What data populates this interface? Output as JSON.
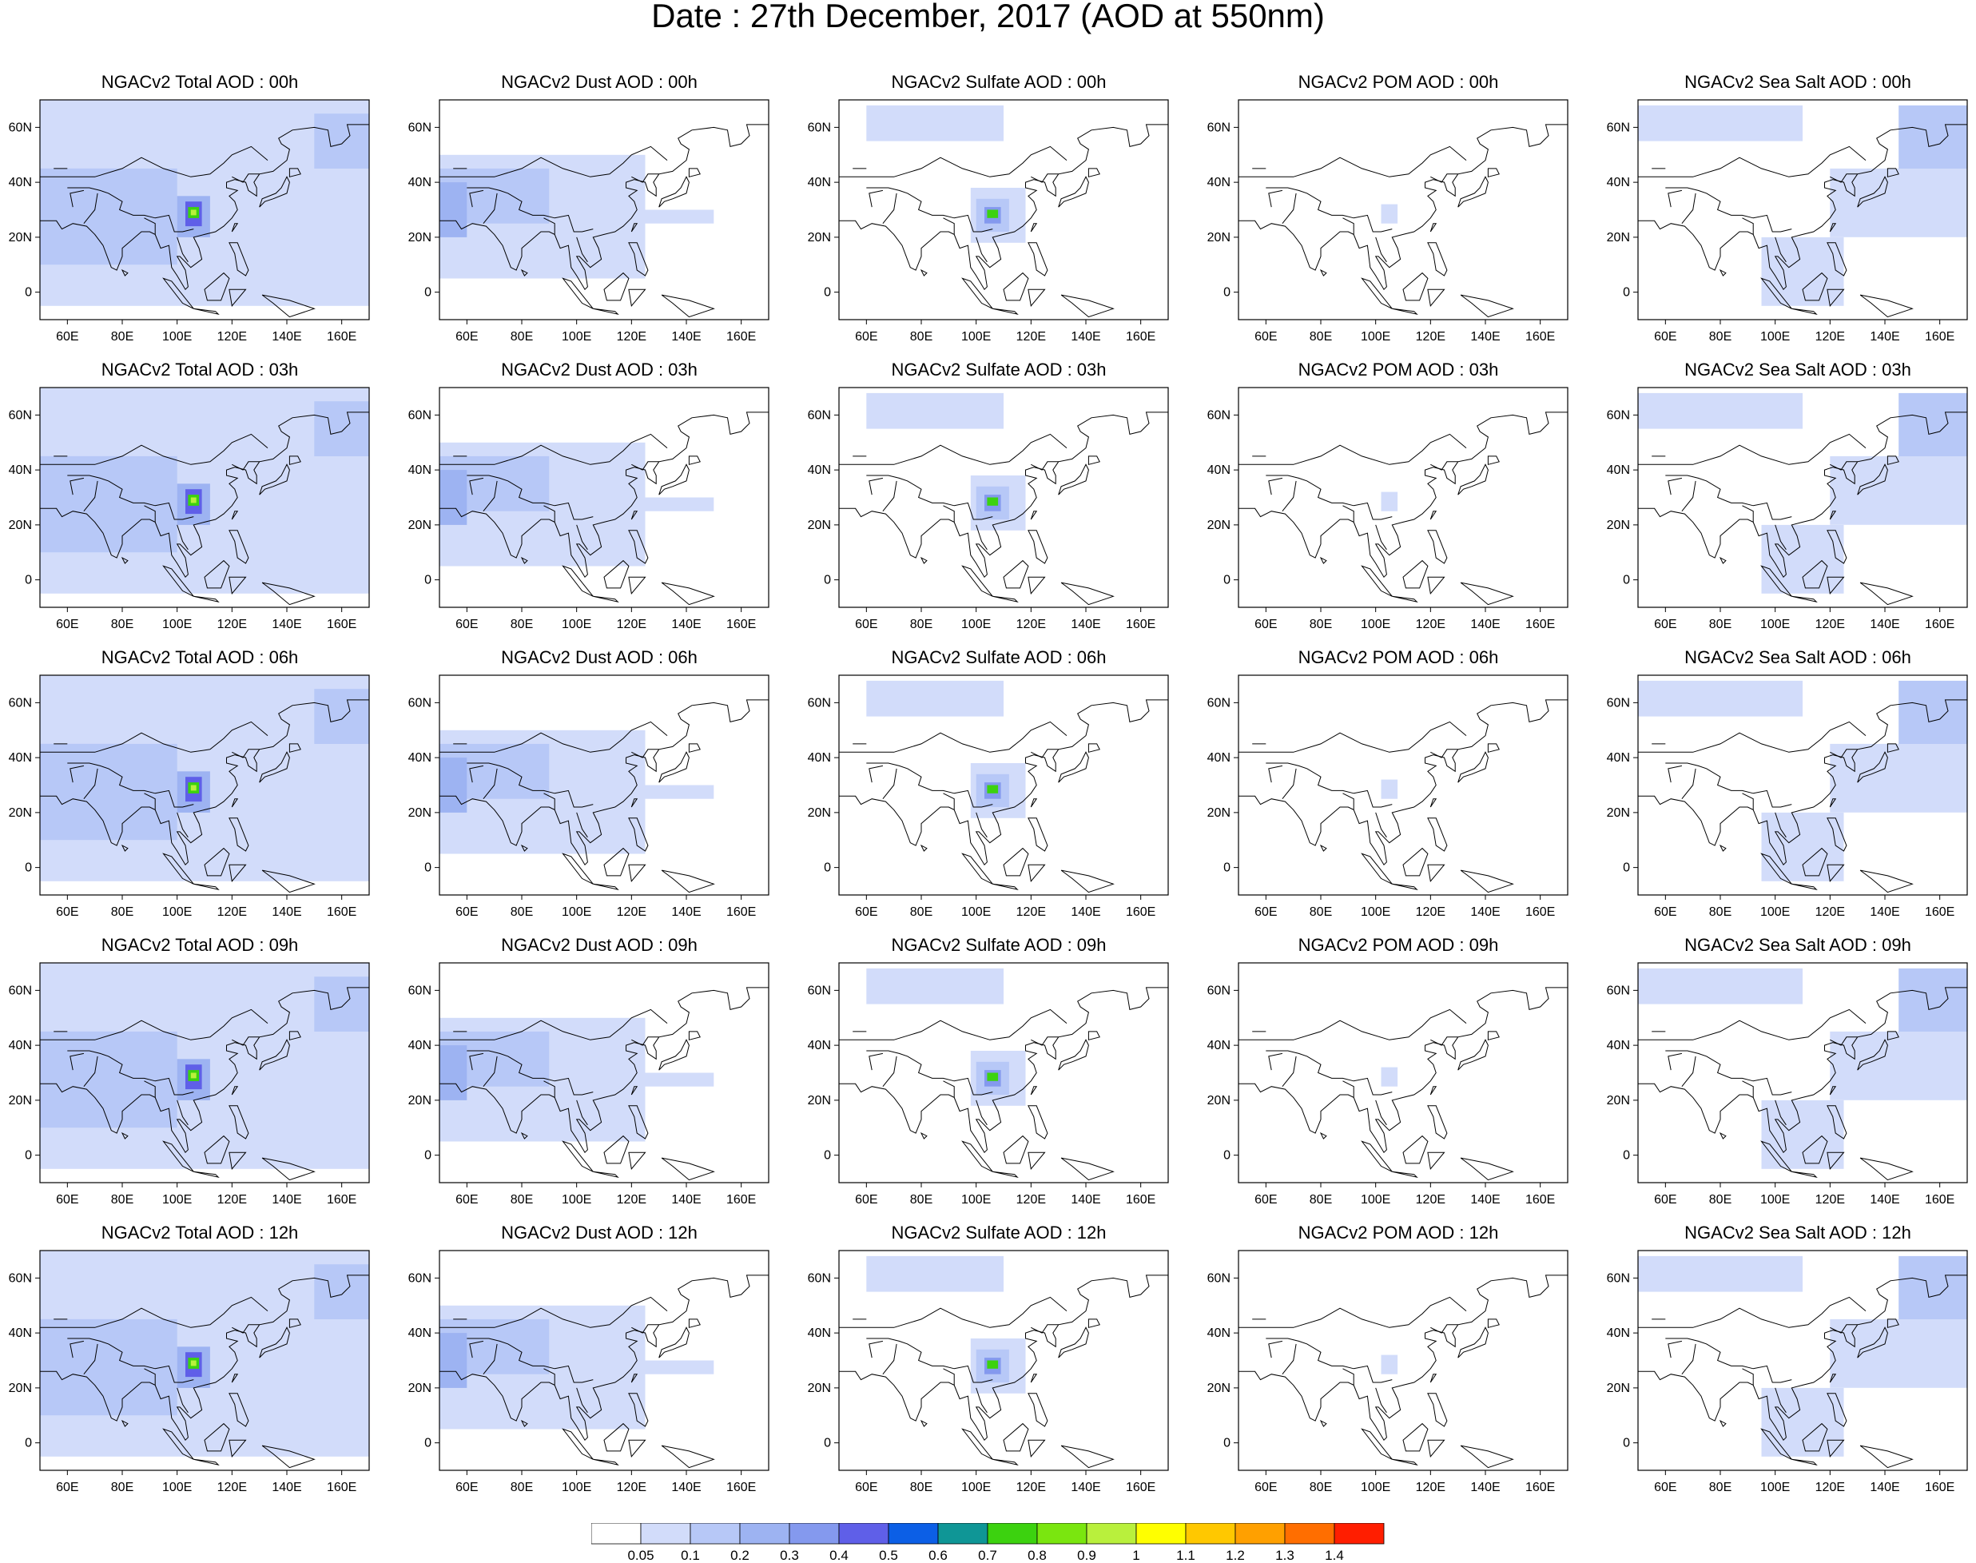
{
  "title": "Date : 27th December, 2017 (AOD at 550nm)",
  "panel_titles": [
    [
      "NGACv2 Total AOD : 00h",
      "NGACv2 Dust AOD : 00h",
      "NGACv2 Sulfate AOD : 00h",
      "NGACv2 POM AOD : 00h",
      "NGACv2 Sea Salt AOD : 00h"
    ],
    [
      "NGACv2 Total AOD : 03h",
      "NGACv2 Dust AOD : 03h",
      "NGACv2 Sulfate AOD : 03h",
      "NGACv2 POM AOD : 03h",
      "NGACv2 Sea Salt AOD : 03h"
    ],
    [
      "NGACv2 Total AOD : 06h",
      "NGACv2 Dust AOD : 06h",
      "NGACv2 Sulfate AOD : 06h",
      "NGACv2 POM AOD : 06h",
      "NGACv2 Sea Salt AOD : 06h"
    ],
    [
      "NGACv2 Total AOD : 09h",
      "NGACv2 Dust AOD : 09h",
      "NGACv2 Sulfate AOD : 09h",
      "NGACv2 POM AOD : 09h",
      "NGACv2 Sea Salt  AOD : 09h"
    ],
    [
      "NGACv2 Total AOD  : 12h",
      "NGACv2 Dust AOD : 12h",
      "NGACv2 Sulfate AOD : 12h",
      "NGACv2 POM  AOD : 12h",
      "NGACv2 Sea Salt  AOD : 12h"
    ]
  ],
  "map": {
    "lon_range": [
      50,
      170
    ],
    "lat_range": [
      -10,
      70
    ],
    "lon_ticks": [
      60,
      80,
      100,
      120,
      140,
      160
    ],
    "lon_tick_labels": [
      "60E",
      "80E",
      "100E",
      "120E",
      "140E",
      "160E"
    ],
    "lat_ticks": [
      0,
      20,
      40,
      60
    ],
    "lat_tick_labels": [
      "0",
      "20N",
      "40N",
      "60N"
    ],
    "coastline_color": "#000000"
  },
  "colorbar": {
    "levels": [
      "0.05",
      "0.1",
      "0.2",
      "0.3",
      "0.4",
      "0.5",
      "0.6",
      "0.7",
      "0.8",
      "0.9",
      "1",
      "1.1",
      "1.2",
      "1.3",
      "1.4"
    ],
    "colors": [
      "#ffffff",
      "#d2dcfa",
      "#b7c8f7",
      "#9db3f2",
      "#8499ee",
      "#5f5fe8",
      "#0c5fe6",
      "#0f9696",
      "#3cd20f",
      "#7ae60f",
      "#b9f03c",
      "#ffff00",
      "#ffc800",
      "#ffa000",
      "#ff6e00",
      "#ff1e00"
    ]
  },
  "fields": {
    "total": [
      {
        "lon": [
          50,
          170
        ],
        "lat": [
          -5,
          70
        ],
        "level": 1
      },
      {
        "lon": [
          50,
          100
        ],
        "lat": [
          10,
          45
        ],
        "level": 2
      },
      {
        "lon": [
          50,
          80
        ],
        "lat": [
          30,
          45
        ],
        "level": 2
      },
      {
        "lon": [
          150,
          170
        ],
        "lat": [
          45,
          65
        ],
        "level": 2
      },
      {
        "lon": [
          100,
          112
        ],
        "lat": [
          20,
          35
        ],
        "level": 3
      },
      {
        "lon": [
          103,
          109
        ],
        "lat": [
          24,
          33
        ],
        "level": 5
      },
      {
        "lon": [
          104,
          108
        ],
        "lat": [
          27,
          31
        ],
        "level": 8
      },
      {
        "lon": [
          105,
          107
        ],
        "lat": [
          28,
          30
        ],
        "level": 10
      }
    ],
    "dust": [
      {
        "lon": [
          50,
          125
        ],
        "lat": [
          5,
          50
        ],
        "level": 1
      },
      {
        "lon": [
          125,
          150
        ],
        "lat": [
          25,
          30
        ],
        "level": 1
      },
      {
        "lon": [
          50,
          90
        ],
        "lat": [
          25,
          45
        ],
        "level": 2
      },
      {
        "lon": [
          50,
          60
        ],
        "lat": [
          20,
          40
        ],
        "level": 3
      }
    ],
    "sulfate": [
      {
        "lon": [
          60,
          110
        ],
        "lat": [
          55,
          68
        ],
        "level": 1
      },
      {
        "lon": [
          98,
          118
        ],
        "lat": [
          18,
          38
        ],
        "level": 1
      },
      {
        "lon": [
          100,
          112
        ],
        "lat": [
          22,
          34
        ],
        "level": 2
      },
      {
        "lon": [
          103,
          109
        ],
        "lat": [
          25,
          31
        ],
        "level": 4
      },
      {
        "lon": [
          104,
          108
        ],
        "lat": [
          27,
          30
        ],
        "level": 8
      }
    ],
    "pom": [
      {
        "lon": [
          102,
          108
        ],
        "lat": [
          25,
          32
        ],
        "level": 1
      }
    ],
    "seasalt": [
      {
        "lon": [
          50,
          110
        ],
        "lat": [
          55,
          68
        ],
        "level": 1
      },
      {
        "lon": [
          120,
          170
        ],
        "lat": [
          20,
          45
        ],
        "level": 1
      },
      {
        "lon": [
          95,
          125
        ],
        "lat": [
          -5,
          20
        ],
        "level": 1
      },
      {
        "lon": [
          145,
          170
        ],
        "lat": [
          45,
          68
        ],
        "level": 2
      }
    ]
  },
  "row_fields": [
    "total",
    "dust",
    "sulfate",
    "pom",
    "seasalt"
  ]
}
